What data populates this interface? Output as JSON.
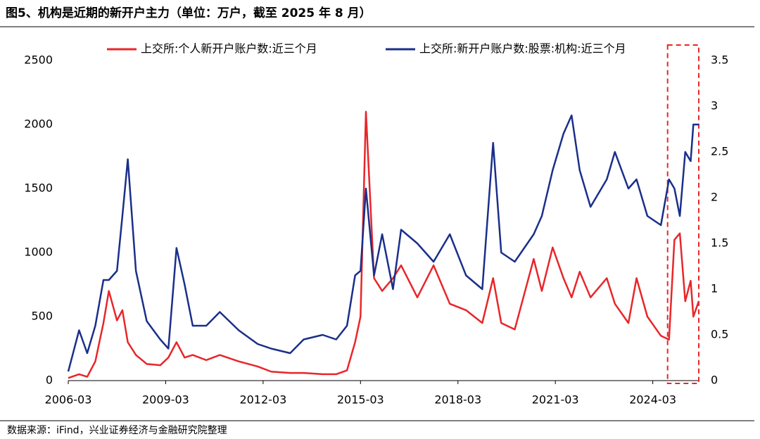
{
  "chart_data": {
    "type": "line",
    "title": "图5、机构是近期的新开户主力（单位：万户，截至 2025 年 8 月）",
    "source": "数据来源：iFind，兴业证券经济与金融研究院整理",
    "x": [
      "2006-03",
      "2006-07",
      "2006-10",
      "2007-01",
      "2007-04",
      "2007-06",
      "2007-09",
      "2007-11",
      "2008-01",
      "2008-04",
      "2008-08",
      "2009-01",
      "2009-04",
      "2009-07",
      "2009-10",
      "2010-01",
      "2010-06",
      "2010-11",
      "2011-06",
      "2012-01",
      "2012-06",
      "2013-01",
      "2013-06",
      "2014-01",
      "2014-06",
      "2014-10",
      "2015-01",
      "2015-03",
      "2015-05",
      "2015-08",
      "2015-11",
      "2016-03",
      "2016-06",
      "2016-12",
      "2017-06",
      "2017-12",
      "2018-06",
      "2018-12",
      "2019-04",
      "2019-07",
      "2019-12",
      "2020-07",
      "2020-10",
      "2021-02",
      "2021-06",
      "2021-09",
      "2021-12",
      "2022-04",
      "2022-10",
      "2023-01",
      "2023-06",
      "2023-09",
      "2024-01",
      "2024-06",
      "2024-09",
      "2024-11",
      "2025-01",
      "2025-03",
      "2025-05",
      "2025-06",
      "2025-08"
    ],
    "series": [
      {
        "name": "上交所:个人新开户账户数:近三个月",
        "color": "#e8262a",
        "values": [
          20,
          50,
          30,
          150,
          450,
          700,
          470,
          550,
          300,
          200,
          130,
          120,
          180,
          300,
          180,
          200,
          160,
          200,
          150,
          110,
          70,
          60,
          60,
          50,
          50,
          80,
          300,
          500,
          2100,
          800,
          700,
          800,
          900,
          650,
          900,
          600,
          550,
          450,
          800,
          450,
          400,
          950,
          700,
          1040,
          800,
          650,
          850,
          650,
          800,
          600,
          450,
          800,
          500,
          350,
          320,
          1100,
          1150,
          620,
          780,
          500,
          620
        ]
      },
      {
        "name": "上交所:新开户账户数:股票:机构:近三个月",
        "color": "#1a2f8a",
        "axis": "y2",
        "values": [
          0.1,
          0.55,
          0.3,
          0.6,
          1.1,
          1.1,
          1.2,
          1.8,
          2.42,
          1.2,
          0.65,
          0.45,
          0.35,
          1.45,
          1.05,
          0.6,
          0.6,
          0.75,
          0.55,
          0.4,
          0.35,
          0.3,
          0.45,
          0.5,
          0.45,
          0.6,
          1.15,
          1.2,
          2.1,
          1.15,
          1.6,
          1.0,
          1.65,
          1.5,
          1.3,
          1.6,
          1.15,
          1.0,
          2.6,
          1.4,
          1.3,
          1.6,
          1.8,
          2.3,
          2.7,
          2.9,
          2.3,
          1.9,
          2.2,
          2.5,
          2.1,
          2.2,
          1.8,
          1.7,
          2.2,
          2.1,
          1.8,
          2.5,
          2.4,
          2.8,
          2.8
        ]
      }
    ],
    "xlim": [
      "2006-03",
      "2025-08"
    ],
    "xticks": [
      "2006-03",
      "2009-03",
      "2012-03",
      "2015-03",
      "2018-03",
      "2021-03",
      "2024-03"
    ],
    "ylim": [
      0,
      2500
    ],
    "yticks": [
      0,
      500,
      1000,
      1500,
      2000,
      2500
    ],
    "y2lim": [
      0,
      3.5
    ],
    "y2ticks": [
      0,
      0.5,
      1,
      1.5,
      2,
      2.5,
      3,
      3.5
    ],
    "highlight": [
      "2024-09",
      "2025-08"
    ]
  }
}
